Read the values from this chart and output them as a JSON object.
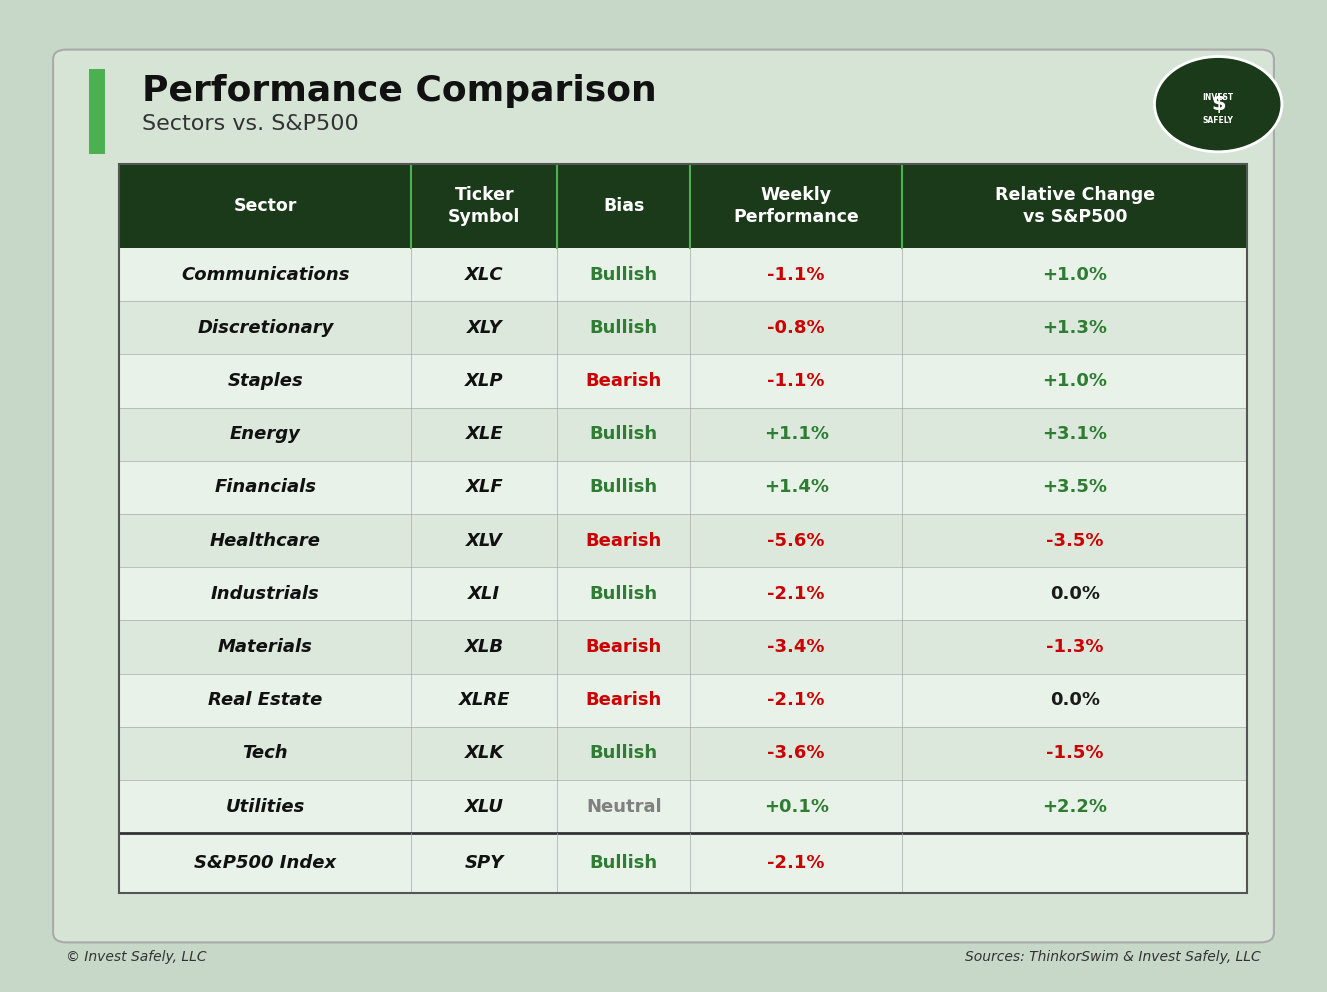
{
  "title": "Performance Comparison",
  "subtitle": "Sectors vs. S&P500",
  "bg_color": "#d6e4d6",
  "outer_bg": "#c8d8c8",
  "header_bg": "#1a3a1a",
  "header_text_color": "#ffffff",
  "col_headers": [
    "Sector",
    "Ticker\nSymbol",
    "Bias",
    "Weekly\nPerformance",
    "Relative Change\nvs S&P500"
  ],
  "rows": [
    {
      "sector": "Communications",
      "ticker": "XLC",
      "bias": "Bullish",
      "weekly": "-1.1%",
      "relative": "+1.0%"
    },
    {
      "sector": "Discretionary",
      "ticker": "XLY",
      "bias": "Bullish",
      "weekly": "-0.8%",
      "relative": "+1.3%"
    },
    {
      "sector": "Staples",
      "ticker": "XLP",
      "bias": "Bearish",
      "weekly": "-1.1%",
      "relative": "+1.0%"
    },
    {
      "sector": "Energy",
      "ticker": "XLE",
      "bias": "Bullish",
      "weekly": "+1.1%",
      "relative": "+3.1%"
    },
    {
      "sector": "Financials",
      "ticker": "XLF",
      "bias": "Bullish",
      "weekly": "+1.4%",
      "relative": "+3.5%"
    },
    {
      "sector": "Healthcare",
      "ticker": "XLV",
      "bias": "Bearish",
      "weekly": "-5.6%",
      "relative": "-3.5%"
    },
    {
      "sector": "Industrials",
      "ticker": "XLI",
      "bias": "Bullish",
      "weekly": "-2.1%",
      "relative": "0.0%"
    },
    {
      "sector": "Materials",
      "ticker": "XLB",
      "bias": "Bearish",
      "weekly": "-3.4%",
      "relative": "-1.3%"
    },
    {
      "sector": "Real Estate",
      "ticker": "XLRE",
      "bias": "Bearish",
      "weekly": "-2.1%",
      "relative": "0.0%"
    },
    {
      "sector": "Tech",
      "ticker": "XLK",
      "bias": "Bullish",
      "weekly": "-3.6%",
      "relative": "-1.5%"
    },
    {
      "sector": "Utilities",
      "ticker": "XLU",
      "bias": "Neutral",
      "weekly": "+0.1%",
      "relative": "+2.2%"
    }
  ],
  "sp500_row": {
    "sector": "S&P500 Index",
    "ticker": "SPY",
    "bias": "Bullish",
    "weekly": "-2.1%",
    "relative": ""
  },
  "bullish_color": "#2e7d32",
  "bearish_color": "#cc0000",
  "neutral_color": "#808080",
  "positive_color": "#2e7d32",
  "negative_color": "#cc0000",
  "neutral_val_color": "#1a1a1a",
  "footer_left": "© Invest Safely, LLC",
  "footer_right": "Sources: ThinkorSwim & Invest Safely, LLC",
  "green_bar_color": "#4caf50",
  "dark_green": "#1a3a1a"
}
